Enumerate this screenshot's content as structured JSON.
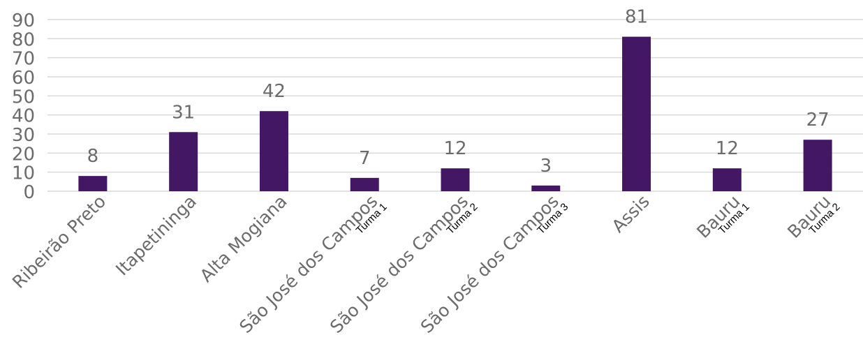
{
  "colors": {
    "bar": "#431763",
    "grid": "#d9d9d9",
    "text": "#6b6b6b"
  },
  "chart_data": {
    "type": "bar",
    "title": "",
    "xlabel": "",
    "ylabel": "",
    "ylim": [
      0,
      90
    ],
    "yticks": [
      0,
      10,
      20,
      30,
      40,
      50,
      60,
      70,
      80,
      90
    ],
    "grid": true,
    "legend": "none",
    "categories": [
      {
        "name": "Ribeirão Preto",
        "sub": ""
      },
      {
        "name": "Itapetininga",
        "sub": ""
      },
      {
        "name": "Alta Mogiana",
        "sub": ""
      },
      {
        "name": "São José dos Campos",
        "sub": "Turma 1"
      },
      {
        "name": "São José dos Campos",
        "sub": "Turma 2"
      },
      {
        "name": "São José dos Campos",
        "sub": "Turma 3"
      },
      {
        "name": "Assis",
        "sub": ""
      },
      {
        "name": "Bauru",
        "sub": "Turma 1"
      },
      {
        "name": "Bauru",
        "sub": "Turma 2"
      }
    ],
    "values": [
      8,
      31,
      42,
      7,
      12,
      3,
      81,
      12,
      27
    ]
  }
}
